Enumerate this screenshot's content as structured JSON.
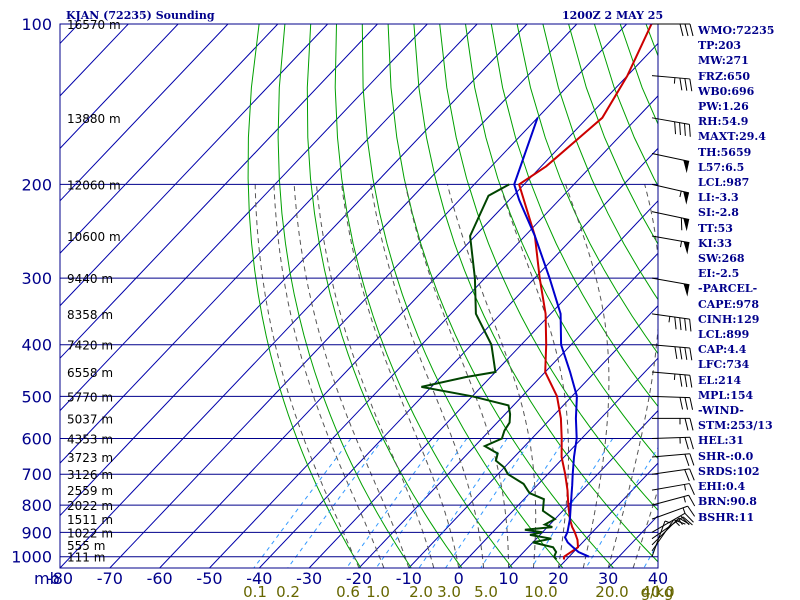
{
  "header": {
    "station": "KJAN (72235) Sounding",
    "time": "1200Z  2 MAY 25"
  },
  "indices": [
    "WMO:72235",
    "TP:203",
    "MW:271",
    "FRZ:650",
    "WB0:696",
    "PW:1.26",
    "RH:54.9",
    "MAXT:29.4",
    "TH:5659",
    "L57:6.5",
    "LCL:987",
    "LI:-3.3",
    "SI:-2.8",
    "TT:53",
    "KI:33",
    "SW:268",
    "EI:-2.5",
    "-PARCEL-",
    "CAPE:978",
    "CINH:129",
    "LCL:899",
    "CAP:4.4",
    "LFC:734",
    "EL:214",
    "MPL:154",
    "-WIND-",
    "STM:253/13",
    "HEL:31",
    "SHR-:0.0",
    "SRDS:102",
    "EHI:0.4",
    "BRN:90.8",
    "BSHR:11"
  ],
  "colors": {
    "frame": "#00008b",
    "isotherm": "#0000aa",
    "dry_adiabat": "#00a000",
    "moist_adiabat": "#555555",
    "mixing_ratio": "#3399ff",
    "temperature": "#cc0000",
    "dewpoint": "#004400",
    "parcel": "#0000cc",
    "wind": "#000000",
    "mixing_label": "#666600"
  },
  "chart_data": {
    "type": "line",
    "title": "KJAN (72235) Sounding",
    "xlabel": "",
    "ylabel": "mb",
    "x_axis": {
      "range": [
        -80,
        40
      ],
      "ticks": [
        -80,
        -70,
        -60,
        -50,
        -40,
        -30,
        -20,
        -10,
        0,
        10,
        20,
        30,
        40
      ],
      "units": "C"
    },
    "y_axis": {
      "range": [
        1050,
        100
      ],
      "scale": "log",
      "ticks": [
        100,
        200,
        300,
        400,
        500,
        600,
        700,
        800,
        900,
        1000
      ],
      "unit_label": "mb"
    },
    "height_labels": [
      {
        "p": 100,
        "text": "16570 m"
      },
      {
        "p": 150,
        "text": "13880 m"
      },
      {
        "p": 200,
        "text": "12060 m"
      },
      {
        "p": 250,
        "text": "10600 m"
      },
      {
        "p": 300,
        "text": "9440 m"
      },
      {
        "p": 350,
        "text": "8358 m"
      },
      {
        "p": 400,
        "text": "7420 m"
      },
      {
        "p": 450,
        "text": "6558 m"
      },
      {
        "p": 500,
        "text": "5770 m"
      },
      {
        "p": 550,
        "text": "5037 m"
      },
      {
        "p": 600,
        "text": "4353 m"
      },
      {
        "p": 650,
        "text": "3723 m"
      },
      {
        "p": 700,
        "text": "3126 m"
      },
      {
        "p": 750,
        "text": "2559 m"
      },
      {
        "p": 800,
        "text": "2022 m"
      },
      {
        "p": 850,
        "text": "1511 m"
      },
      {
        "p": 900,
        "text": "1022 m"
      },
      {
        "p": 950,
        "text": "555 m"
      },
      {
        "p": 1000,
        "text": "111 m"
      }
    ],
    "mixing_ratio_labels": [
      "0.1",
      "0.2",
      "0.6",
      "1.0",
      "2.0",
      "3.0",
      "5.0",
      "10.0",
      "20.0",
      "40.0",
      "g/kg"
    ],
    "mixing_ratio_values": [
      0.1,
      0.2,
      0.6,
      1.0,
      2.0,
      3.0,
      5.0,
      10.0,
      20.0,
      40.0
    ],
    "series": [
      {
        "name": "temperature",
        "points": [
          [
            1012,
            19.5
          ],
          [
            1000,
            19
          ],
          [
            960,
            20
          ],
          [
            930,
            18.5
          ],
          [
            900,
            16.5
          ],
          [
            880,
            15
          ],
          [
            850,
            13
          ],
          [
            800,
            10
          ],
          [
            750,
            7
          ],
          [
            700,
            3.5
          ],
          [
            650,
            -0.5
          ],
          [
            600,
            -4
          ],
          [
            550,
            -8
          ],
          [
            500,
            -13
          ],
          [
            450,
            -20
          ],
          [
            400,
            -25
          ],
          [
            350,
            -31
          ],
          [
            300,
            -39
          ],
          [
            250,
            -48
          ],
          [
            200,
            -61
          ],
          [
            185,
            -59
          ],
          [
            150,
            -57
          ],
          [
            125,
            -60
          ],
          [
            100,
            -65
          ]
        ]
      },
      {
        "name": "dewpoint",
        "points": [
          [
            1012,
            18
          ],
          [
            1000,
            17
          ],
          [
            980,
            16.5
          ],
          [
            960,
            15
          ],
          [
            940,
            10
          ],
          [
            925,
            13
          ],
          [
            910,
            8
          ],
          [
            900,
            10
          ],
          [
            890,
            6
          ],
          [
            880,
            11
          ],
          [
            870,
            9
          ],
          [
            850,
            10
          ],
          [
            820,
            6
          ],
          [
            800,
            5
          ],
          [
            780,
            4
          ],
          [
            760,
            0
          ],
          [
            750,
            -1
          ],
          [
            730,
            -3
          ],
          [
            700,
            -8
          ],
          [
            680,
            -10
          ],
          [
            660,
            -13
          ],
          [
            640,
            -14
          ],
          [
            620,
            -18
          ],
          [
            600,
            -16
          ],
          [
            580,
            -17
          ],
          [
            560,
            -17.5
          ],
          [
            540,
            -19
          ],
          [
            520,
            -21
          ],
          [
            500,
            -30
          ],
          [
            480,
            -42
          ],
          [
            460,
            -35
          ],
          [
            450,
            -30
          ],
          [
            400,
            -36
          ],
          [
            350,
            -45
          ],
          [
            300,
            -52
          ],
          [
            250,
            -61
          ],
          [
            210,
            -65
          ],
          [
            200,
            -63
          ]
        ]
      },
      {
        "name": "parcel",
        "points": [
          [
            1000,
            24
          ],
          [
            980,
            21
          ],
          [
            960,
            19
          ],
          [
            940,
            17
          ],
          [
            920,
            15.5
          ],
          [
            899,
            15
          ],
          [
            850,
            13
          ],
          [
            800,
            10.5
          ],
          [
            734,
            7
          ],
          [
            700,
            5
          ],
          [
            650,
            2
          ],
          [
            600,
            -1
          ],
          [
            550,
            -5
          ],
          [
            500,
            -9
          ],
          [
            450,
            -15
          ],
          [
            400,
            -22
          ],
          [
            350,
            -28
          ],
          [
            300,
            -37
          ],
          [
            250,
            -48
          ],
          [
            214,
            -58
          ],
          [
            200,
            -62
          ],
          [
            150,
            -70
          ]
        ]
      }
    ],
    "wind_barbs": [
      {
        "p": 1000,
        "dir": 200,
        "spd": 5
      },
      {
        "p": 975,
        "dir": 215,
        "spd": 10
      },
      {
        "p": 950,
        "dir": 225,
        "spd": 15
      },
      {
        "p": 925,
        "dir": 235,
        "spd": 15
      },
      {
        "p": 900,
        "dir": 240,
        "spd": 20
      },
      {
        "p": 850,
        "dir": 250,
        "spd": 15
      },
      {
        "p": 800,
        "dir": 255,
        "spd": 15
      },
      {
        "p": 750,
        "dir": 260,
        "spd": 15
      },
      {
        "p": 700,
        "dir": 262,
        "spd": 20
      },
      {
        "p": 650,
        "dir": 265,
        "spd": 20
      },
      {
        "p": 600,
        "dir": 268,
        "spd": 25
      },
      {
        "p": 550,
        "dir": 270,
        "spd": 25
      },
      {
        "p": 500,
        "dir": 272,
        "spd": 30
      },
      {
        "p": 450,
        "dir": 275,
        "spd": 35
      },
      {
        "p": 400,
        "dir": 275,
        "spd": 40
      },
      {
        "p": 350,
        "dir": 278,
        "spd": 45
      },
      {
        "p": 300,
        "dir": 280,
        "spd": 50
      },
      {
        "p": 250,
        "dir": 280,
        "spd": 55
      },
      {
        "p": 225,
        "dir": 282,
        "spd": 60
      },
      {
        "p": 200,
        "dir": 283,
        "spd": 55
      },
      {
        "p": 175,
        "dir": 282,
        "spd": 50
      },
      {
        "p": 150,
        "dir": 280,
        "spd": 40
      },
      {
        "p": 125,
        "dir": 275,
        "spd": 35
      },
      {
        "p": 100,
        "dir": 270,
        "spd": 30
      }
    ]
  }
}
